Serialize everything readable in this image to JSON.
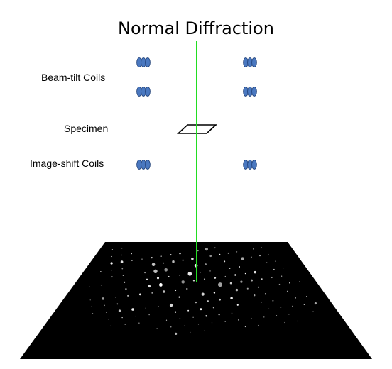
{
  "title": "Normal Diffraction",
  "labels": {
    "beam_tilt_coils": "Beam-tilt Coils",
    "specimen": "Specimen",
    "image_shift_coils": "Image-shift Coils"
  },
  "colors": {
    "beam": "#22dd22",
    "coil_fill": "#4a78c0",
    "coil_stroke": "#1e3f77",
    "screen": "#000000",
    "spot": "#ffffff"
  }
}
